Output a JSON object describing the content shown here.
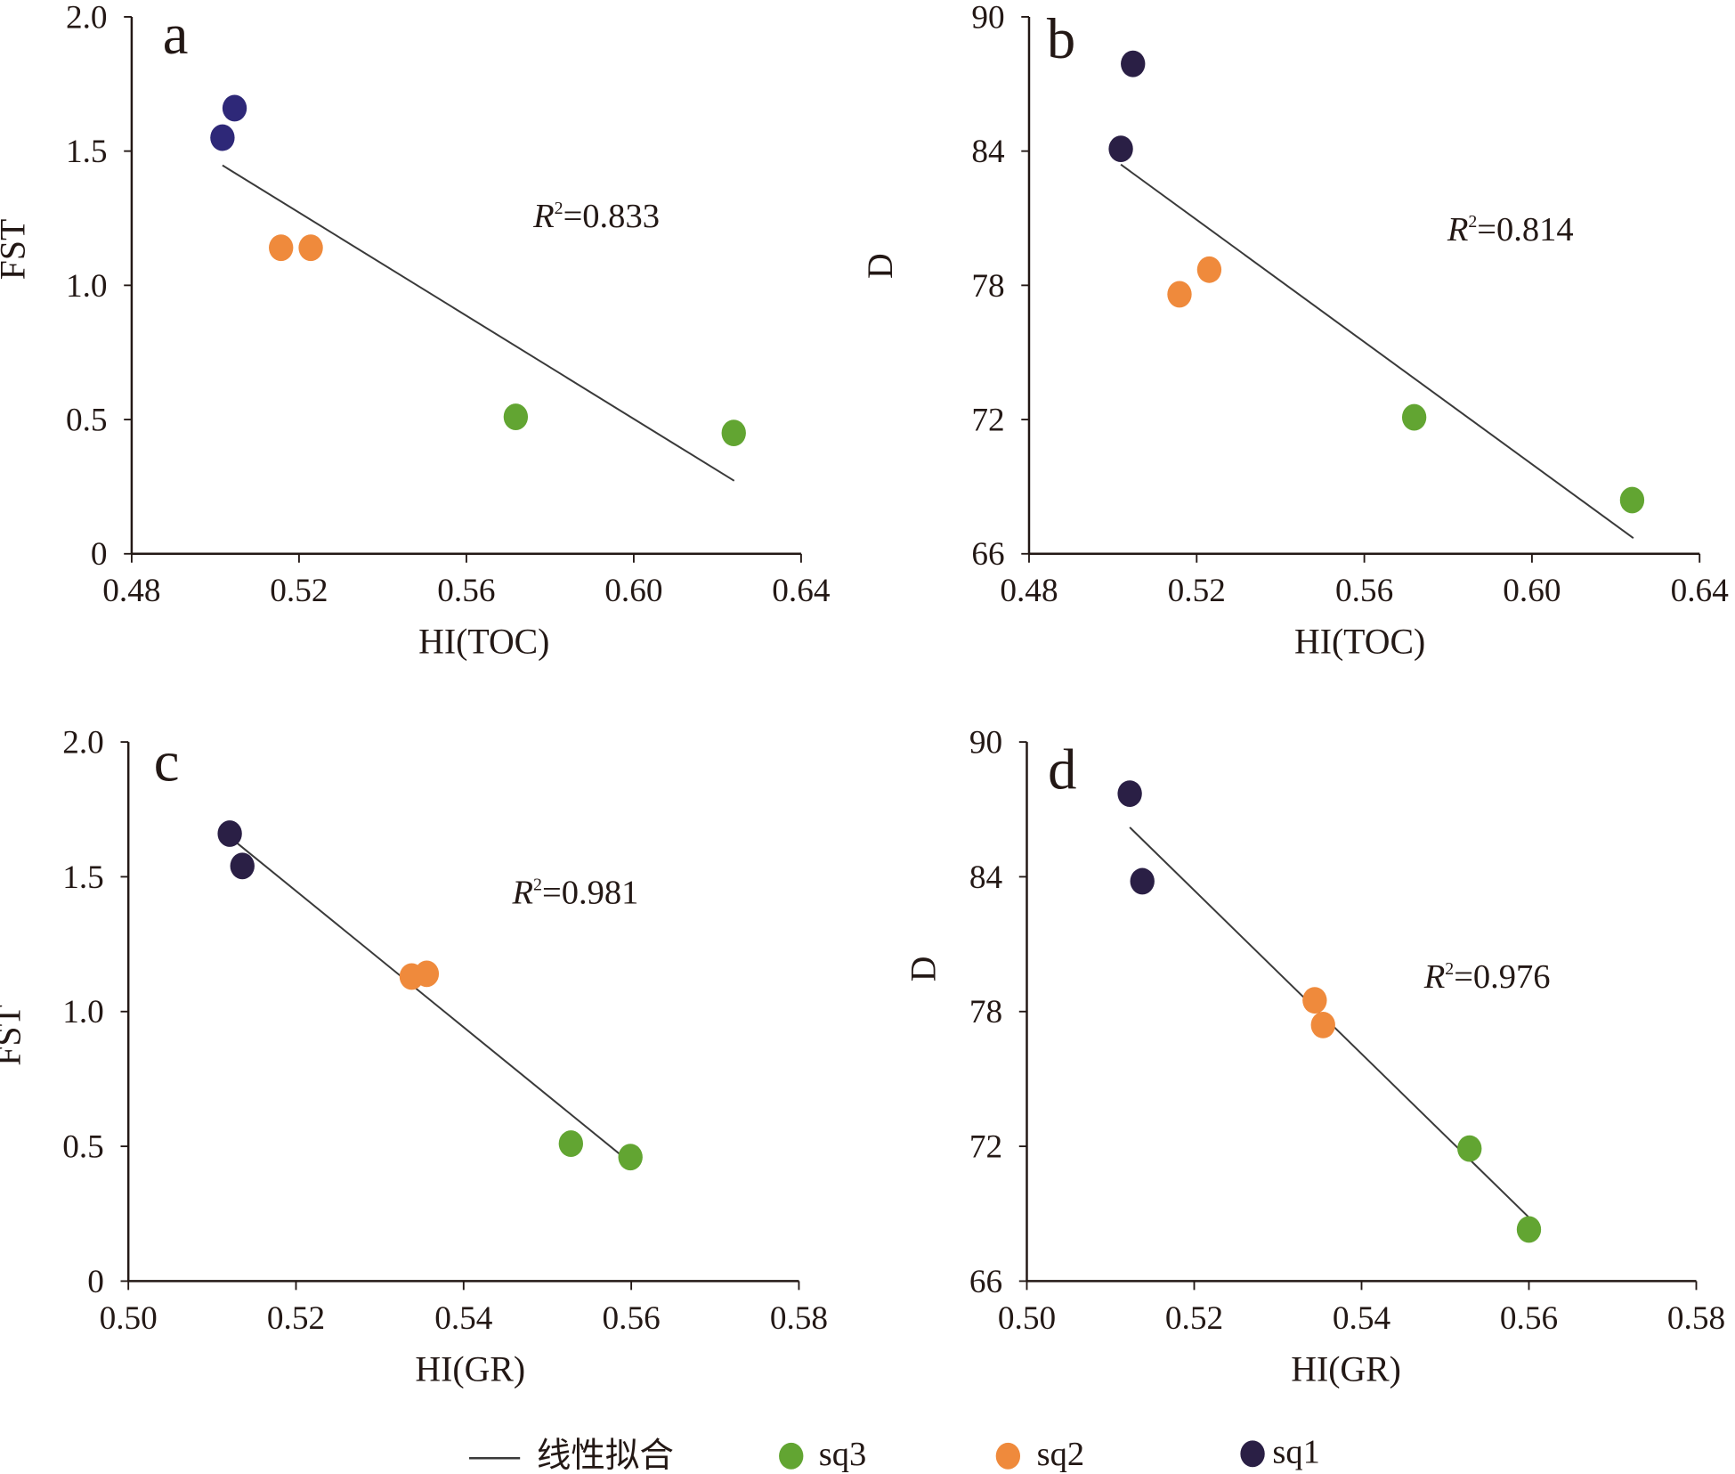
{
  "chart_data": [
    {
      "type": "scatter",
      "panel": "a",
      "xlabel": "HI(TOC)",
      "ylabel": "FST",
      "xlim": [
        0.48,
        0.64
      ],
      "ylim": [
        0,
        2.0
      ],
      "xticks": [
        "0.48",
        "0.52",
        "0.56",
        "0.60",
        "0.64"
      ],
      "yticks": [
        "0",
        "0.5",
        "1.0",
        "1.5",
        "2.0"
      ],
      "xtick_values": [
        0.48,
        0.52,
        0.56,
        0.6,
        0.64
      ],
      "ytick_values": [
        0,
        0.5,
        1.0,
        1.5,
        2.0
      ],
      "r2_label": "=0.833",
      "series": [
        {
          "name": "sq1",
          "color": "#2e2878",
          "points": [
            [
              0.5046,
              1.66
            ],
            [
              0.5017,
              1.55
            ]
          ]
        },
        {
          "name": "sq2",
          "color": "#ef8a3c",
          "points": [
            [
              0.5157,
              1.14
            ],
            [
              0.5228,
              1.14
            ]
          ]
        },
        {
          "name": "sq3",
          "color": "#62a532",
          "points": [
            [
              0.5718,
              0.51
            ],
            [
              0.6239,
              0.45
            ]
          ]
        }
      ],
      "fit_line": [
        [
          0.5017,
          1.447
        ],
        [
          0.624,
          0.272
        ]
      ]
    },
    {
      "type": "scatter",
      "panel": "b",
      "xlabel": "HI(TOC)",
      "ylabel": "D",
      "xlim": [
        0.48,
        0.64
      ],
      "ylim": [
        66,
        90
      ],
      "xticks": [
        "0.48",
        "0.52",
        "0.56",
        "0.60",
        "0.64"
      ],
      "yticks": [
        "66",
        "72",
        "78",
        "84",
        "90"
      ],
      "xtick_values": [
        0.48,
        0.52,
        0.56,
        0.6,
        0.64
      ],
      "ytick_values": [
        66,
        72,
        78,
        84,
        90
      ],
      "r2_label": "=0.814",
      "series": [
        {
          "name": "sq1",
          "color": "#2a1f45",
          "points": [
            [
              0.5048,
              87.9
            ],
            [
              0.5019,
              84.1
            ]
          ]
        },
        {
          "name": "sq2",
          "color": "#ef8a3c",
          "points": [
            [
              0.5159,
              77.6
            ],
            [
              0.523,
              78.7
            ]
          ]
        },
        {
          "name": "sq3",
          "color": "#62a532",
          "points": [
            [
              0.5719,
              72.1
            ],
            [
              0.6239,
              68.4
            ]
          ]
        }
      ],
      "fit_line": [
        [
          0.5019,
          83.4
        ],
        [
          0.6242,
          66.7
        ]
      ]
    },
    {
      "type": "scatter",
      "panel": "c",
      "xlabel": "HI(GR)",
      "ylabel": "FST",
      "xlim": [
        0.5,
        0.58
      ],
      "ylim": [
        0,
        2.0
      ],
      "xticks": [
        "0.50",
        "0.52",
        "0.54",
        "0.56",
        "0.58"
      ],
      "yticks": [
        "0",
        "0.5",
        "1.0",
        "1.5",
        "2.0"
      ],
      "xtick_values": [
        0.5,
        0.52,
        0.54,
        0.56,
        0.58
      ],
      "ytick_values": [
        0,
        0.5,
        1.0,
        1.5,
        2.0
      ],
      "r2_label": "=0.981",
      "series": [
        {
          "name": "sq1",
          "color": "#2a1f45",
          "points": [
            [
              0.5121,
              1.66
            ],
            [
              0.5136,
              1.54
            ]
          ]
        },
        {
          "name": "sq2",
          "color": "#ef8a3c",
          "points": [
            [
              0.5338,
              1.13
            ],
            [
              0.5356,
              1.14
            ]
          ]
        },
        {
          "name": "sq3",
          "color": "#62a532",
          "points": [
            [
              0.5528,
              0.51
            ],
            [
              0.5599,
              0.46
            ]
          ]
        }
      ],
      "fit_line": [
        [
          0.5121,
          1.647
        ],
        [
          0.5599,
          0.439
        ]
      ]
    },
    {
      "type": "scatter",
      "panel": "d",
      "xlabel": "HI(GR)",
      "ylabel": "D",
      "xlim": [
        0.5,
        0.58
      ],
      "ylim": [
        66,
        90
      ],
      "xticks": [
        "0.50",
        "0.52",
        "0.54",
        "0.56",
        "0.58"
      ],
      "yticks": [
        "66",
        "72",
        "78",
        "84",
        "90"
      ],
      "xtick_values": [
        0.5,
        0.52,
        0.54,
        0.56,
        0.58
      ],
      "ytick_values": [
        66,
        72,
        78,
        84,
        90
      ],
      "r2_label": "=0.976",
      "series": [
        {
          "name": "sq1",
          "color": "#2a1f45",
          "points": [
            [
              0.5123,
              87.7
            ],
            [
              0.5138,
              83.8
            ]
          ]
        },
        {
          "name": "sq2",
          "color": "#ef8a3c",
          "points": [
            [
              0.5344,
              78.5
            ],
            [
              0.5354,
              77.4
            ]
          ]
        },
        {
          "name": "sq3",
          "color": "#62a532",
          "points": [
            [
              0.5529,
              71.9
            ],
            [
              0.56,
              68.3
            ]
          ]
        }
      ],
      "fit_line": [
        [
          0.5123,
          86.2
        ],
        [
          0.5601,
          68.8
        ]
      ]
    }
  ],
  "r2_symbol": "R",
  "r2_sup": "2",
  "legend": {
    "fit_label": "线性拟合",
    "items": [
      {
        "label": "sq3",
        "color": "#62a532"
      },
      {
        "label": "sq2",
        "color": "#ef8a3c"
      },
      {
        "label": "sq1",
        "color": "#2a1f45"
      }
    ]
  }
}
